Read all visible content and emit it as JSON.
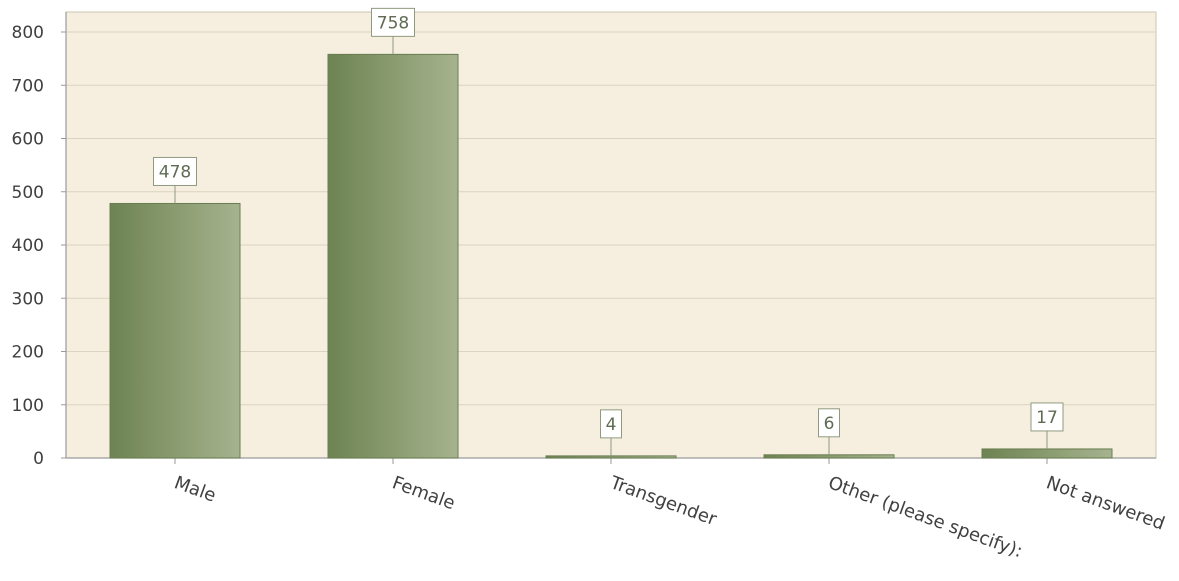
{
  "chart_data": {
    "type": "bar",
    "categories": [
      "Male",
      "Female",
      "Transgender",
      "Other (please specify):",
      "Not answered"
    ],
    "values": [
      478,
      758,
      4,
      6,
      17
    ],
    "data_labels": [
      "478",
      "758",
      "4",
      "6",
      "17"
    ],
    "ylim": [
      0,
      820
    ],
    "yticks": [
      0,
      100,
      200,
      300,
      400,
      500,
      600,
      700,
      800
    ],
    "ytick_labels": [
      "0",
      "100",
      "200",
      "300",
      "400",
      "500",
      "600",
      "700",
      "800"
    ],
    "grid": true,
    "legend": "none",
    "colors": {
      "plot_background": "#f6efdf",
      "gridline": "#dcd3c0",
      "axis": "#9a9a9a",
      "bar_dark": "#6d8352",
      "bar_light": "#a6b38e",
      "bar_stroke": "#6a7d52",
      "label_box_fill": "#ffffff",
      "label_box_stroke": "#8f9a80",
      "label_text": "#5f6b52",
      "tick_text": "#404040"
    }
  }
}
